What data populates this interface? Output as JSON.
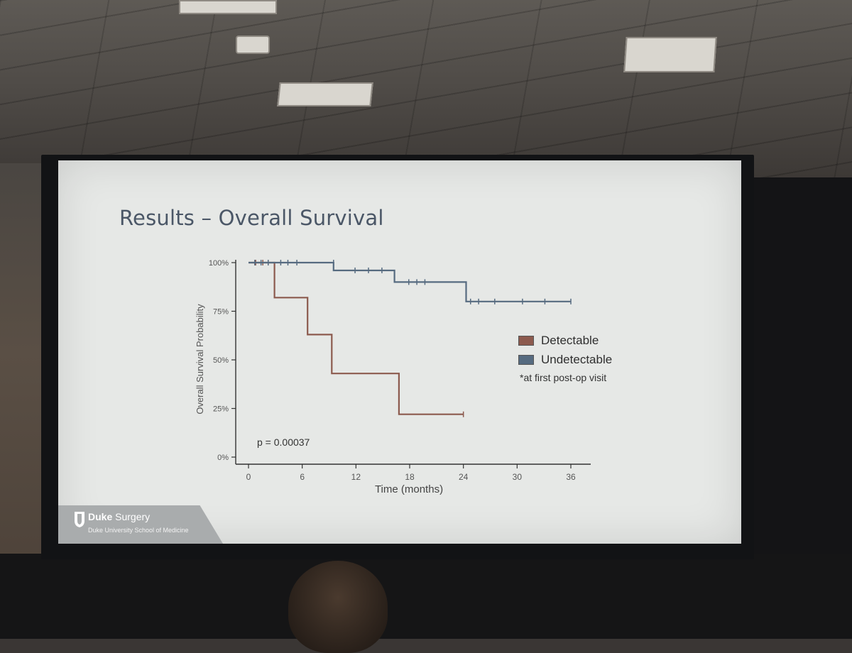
{
  "slide": {
    "title": "Results – Overall Survival",
    "footer": {
      "brand": "Duke",
      "brand_rest": "Surgery",
      "subtitle": "Duke University School of Medicine"
    }
  },
  "colors": {
    "detectable": "#8c5a4e",
    "undetectable": "#566b80",
    "slide_background": "#e6e8e6",
    "title": "#4b5767"
  },
  "chart_data": {
    "type": "line",
    "subtype": "kaplan-meier-step",
    "title": "",
    "xlabel": "Time (months)",
    "ylabel": "Overall Survival Probability",
    "xlim": [
      0,
      36
    ],
    "ylim": [
      0,
      100
    ],
    "x_ticks": [
      "0",
      "6",
      "12",
      "18",
      "24",
      "30",
      "36"
    ],
    "y_ticks": [
      "0%",
      "25%",
      "50%",
      "75%",
      "100%"
    ],
    "x_tick_values": [
      0,
      6,
      12,
      18,
      24,
      30,
      36
    ],
    "y_tick_values": [
      0,
      25,
      50,
      75,
      100
    ],
    "annotation": "p = 0.00037",
    "legend_note": "*at first post-op visit",
    "series": [
      {
        "name": "Detectable",
        "color": "#8c5a4e",
        "steps": [
          [
            0,
            100
          ],
          [
            2.9,
            100
          ],
          [
            2.9,
            82
          ],
          [
            6.6,
            82
          ],
          [
            6.6,
            63
          ],
          [
            9.3,
            63
          ],
          [
            9.3,
            43
          ],
          [
            16.8,
            43
          ],
          [
            16.8,
            22
          ],
          [
            24,
            22
          ]
        ],
        "censors": [
          [
            0.8,
            100
          ],
          [
            1.6,
            100
          ],
          [
            24,
            22
          ]
        ]
      },
      {
        "name": "Undetectable",
        "color": "#566b80",
        "steps": [
          [
            0,
            100
          ],
          [
            9.5,
            100
          ],
          [
            9.5,
            96
          ],
          [
            16.3,
            96
          ],
          [
            16.3,
            90
          ],
          [
            24.3,
            90
          ],
          [
            24.3,
            80
          ],
          [
            36,
            80
          ]
        ],
        "censors": [
          [
            0.7,
            100
          ],
          [
            1.4,
            100
          ],
          [
            2.2,
            100
          ],
          [
            3.6,
            100
          ],
          [
            4.4,
            100
          ],
          [
            5.4,
            100
          ],
          [
            9.5,
            100
          ],
          [
            11.9,
            96
          ],
          [
            13.4,
            96
          ],
          [
            14.9,
            96
          ],
          [
            17.9,
            90
          ],
          [
            18.8,
            90
          ],
          [
            19.7,
            90
          ],
          [
            24.8,
            80
          ],
          [
            25.7,
            80
          ],
          [
            27.5,
            80
          ],
          [
            30.6,
            80
          ],
          [
            33.1,
            80
          ],
          [
            36,
            80
          ]
        ]
      }
    ],
    "legend_position": "right"
  }
}
